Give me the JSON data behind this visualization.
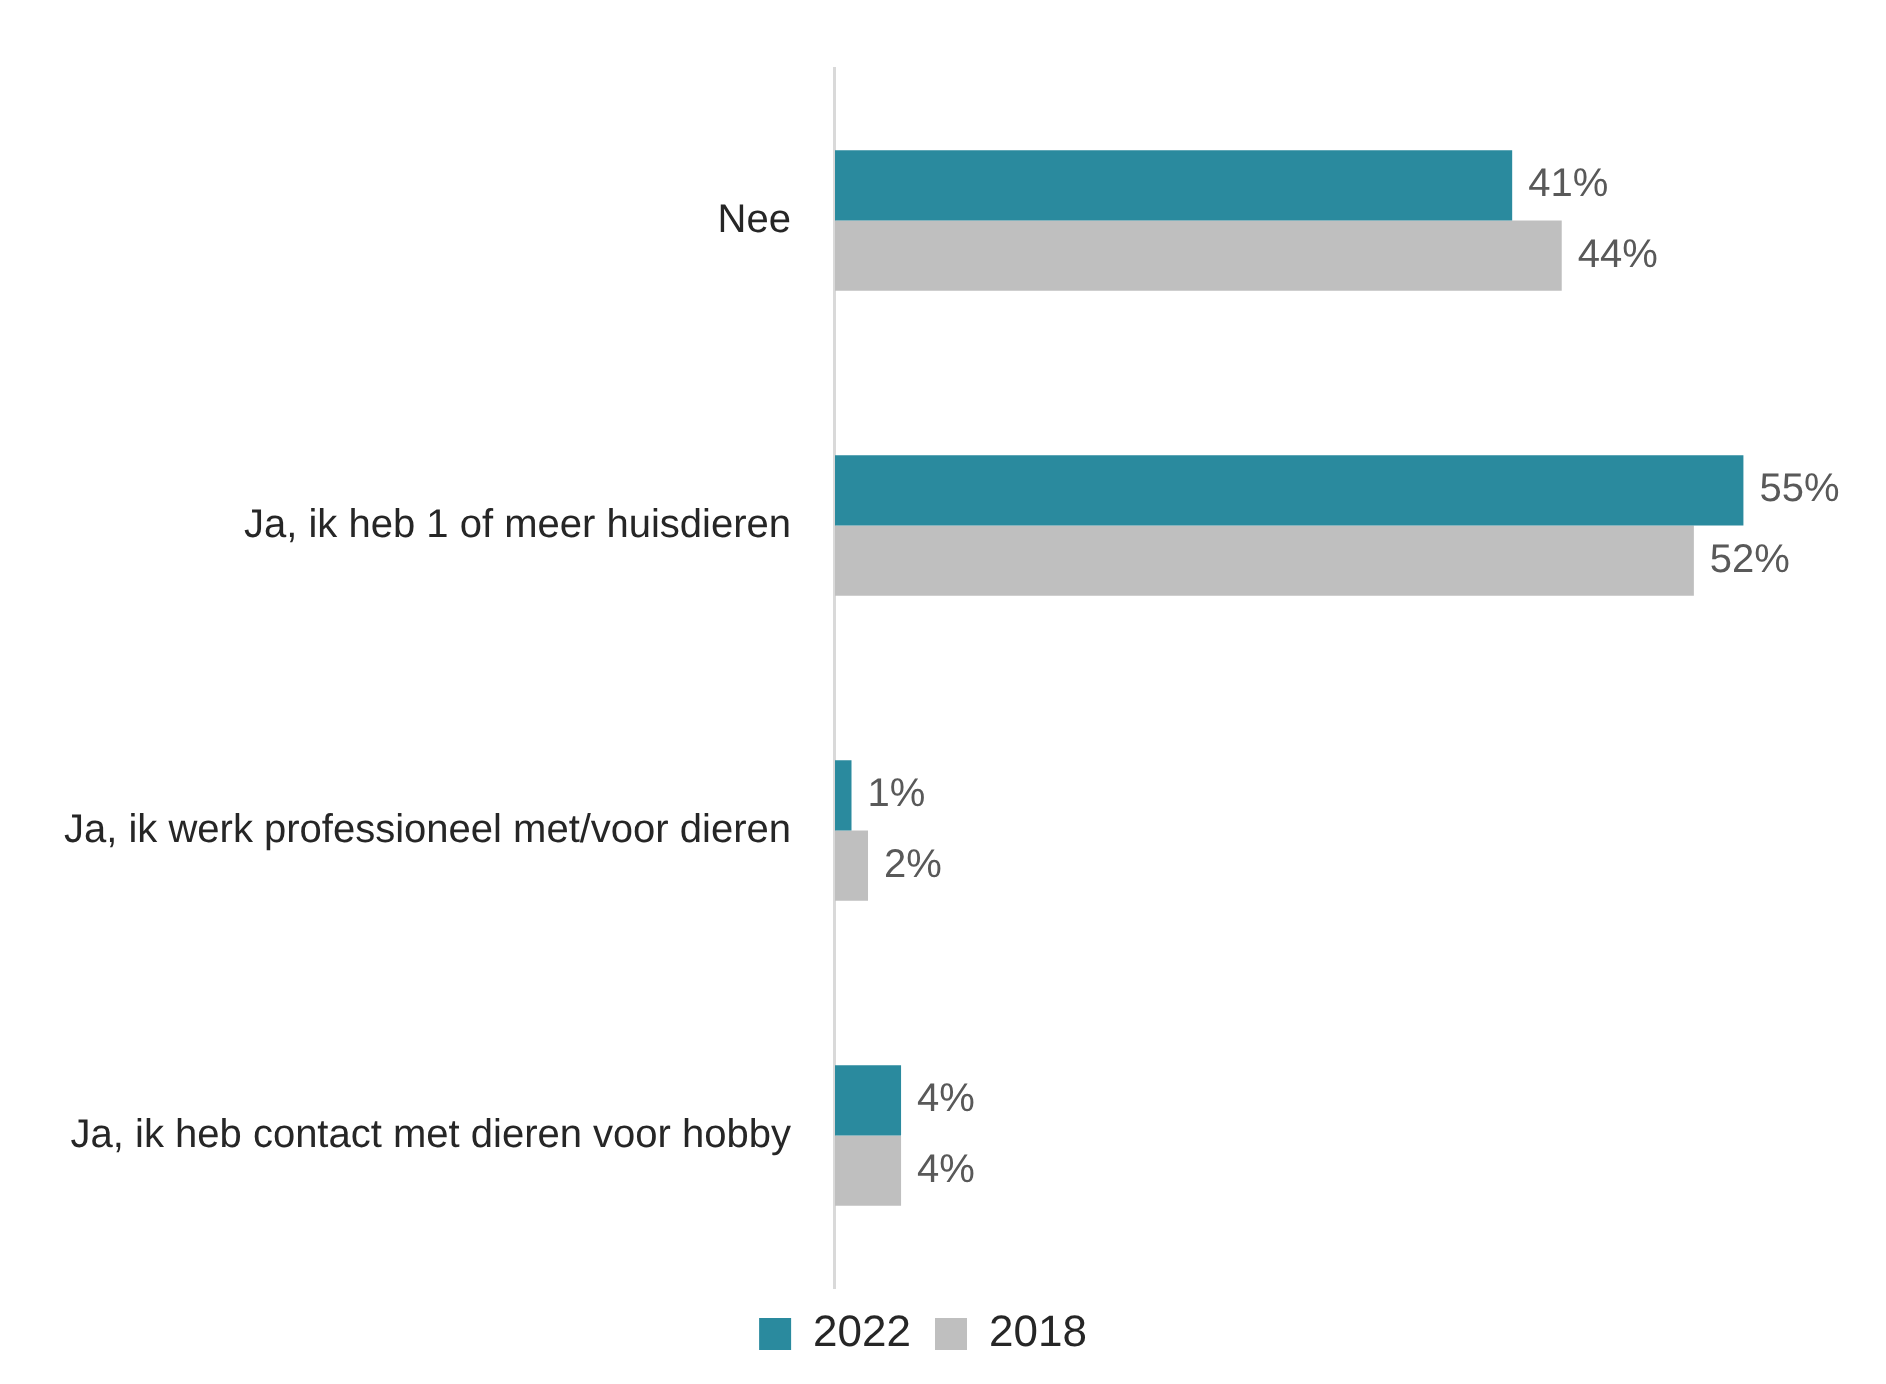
{
  "chart_data": {
    "type": "bar",
    "orientation": "horizontal",
    "categories": [
      "Nee",
      "Ja, ik heb 1 of meer huisdieren",
      "Ja, ik werk professioneel met/voor dieren",
      "Ja, ik heb contact met dieren voor hobby"
    ],
    "series": [
      {
        "name": "2022",
        "color": "#2a8a9e",
        "values": [
          41,
          55,
          1,
          4
        ],
        "value_labels": [
          "41%",
          "55%",
          "1%",
          "4%"
        ]
      },
      {
        "name": "2018",
        "color": "#bfbfbf",
        "values": [
          44,
          52,
          2,
          4
        ],
        "value_labels": [
          "44%",
          "52%",
          "2%",
          "4%"
        ]
      }
    ],
    "grid": false,
    "legend": "bottom",
    "tick_labels": "y"
  }
}
